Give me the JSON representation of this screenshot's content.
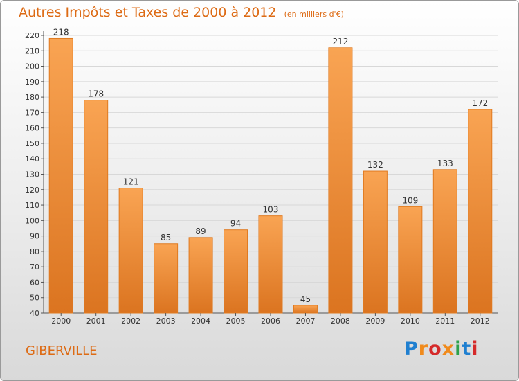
{
  "page": {
    "title": "Autres Impôts et Taxes de 2000 à 2012",
    "unit_note": "(en milliers d'€)",
    "commune": "GIBERVILLE",
    "logo_text": "Proxiti",
    "logo_colors": [
      "#1f7fd0",
      "#f08a1c",
      "#d52a2a",
      "#f08a1c",
      "#2ea14a",
      "#1f7fd0",
      "#d52a2a"
    ]
  },
  "colors": {
    "title": "#dd6b15",
    "bar_light": "#f9a453",
    "bar_dark": "#db7420",
    "axis": "#555555",
    "grid": "#d8d8d8"
  },
  "chart_data": {
    "type": "bar",
    "title": "Autres Impôts et Taxes de 2000 à 2012",
    "subtitle": "(en milliers d'€)",
    "categories": [
      "2000",
      "2001",
      "2002",
      "2003",
      "2004",
      "2005",
      "2006",
      "2007",
      "2008",
      "2009",
      "2010",
      "2011",
      "2012"
    ],
    "values": [
      218,
      178,
      121,
      85,
      89,
      94,
      103,
      45,
      212,
      132,
      109,
      133,
      172
    ],
    "data_labels": [
      "218",
      "178",
      "121",
      "85",
      "89",
      "94",
      "103",
      "45",
      "212",
      "132",
      "109",
      "133",
      "172"
    ],
    "y_ticks": [
      "40",
      "50",
      "60",
      "70",
      "80",
      "90",
      "100",
      "110",
      "120",
      "130",
      "140",
      "150",
      "160",
      "170",
      "180",
      "190",
      "200",
      "210",
      "220"
    ],
    "ylim": [
      40,
      220
    ],
    "grid": true,
    "legend": false
  }
}
